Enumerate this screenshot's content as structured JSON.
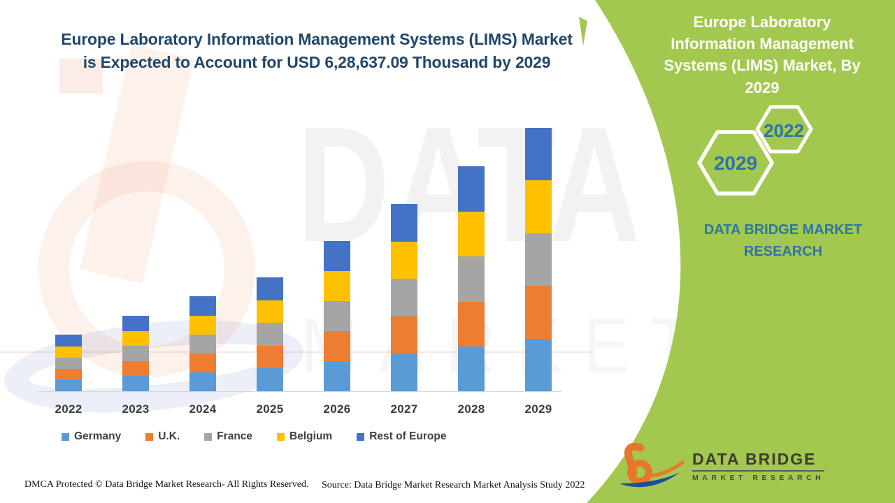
{
  "headline": {
    "line1": "Europe Laboratory Information Management Systems (LIMS) Market",
    "line2": "is Expected to Account for USD 6,28,637.09 Thousand by 2029"
  },
  "panel": {
    "title": "Europe Laboratory Information Management Systems (LIMS) Market, By 2029",
    "brand": "DATA BRIDGE MARKET RESEARCH",
    "background_color": "#A3C84F",
    "text_color": "#2E75A6",
    "hexagons": [
      {
        "label": "2022"
      },
      {
        "label": "2029"
      }
    ]
  },
  "chart_data": {
    "type": "bar",
    "stacked": true,
    "title": "Europe Laboratory Information Management Systems (LIMS) Market is Expected to Account for USD 6,28,637.09 Thousand by 2029",
    "xlabel": "",
    "ylabel": "",
    "y_axis_shown": false,
    "grid": false,
    "legend_position": "bottom",
    "value_unit": "relative height units (no value axis shown); stated 2029 total is USD 6,28,637.09 Thousand",
    "categories": [
      "2022",
      "2023",
      "2024",
      "2025",
      "2026",
      "2027",
      "2028",
      "2029"
    ],
    "series": [
      {
        "name": "Germany",
        "color": "#5B9BD5",
        "values": [
          16,
          22,
          27,
          33,
          43,
          54,
          64,
          75
        ]
      },
      {
        "name": "U.K.",
        "color": "#ED7D31",
        "values": [
          16,
          21,
          27,
          32,
          43,
          53,
          64,
          76
        ]
      },
      {
        "name": "France",
        "color": "#A5A5A5",
        "values": [
          16,
          22,
          27,
          33,
          43,
          54,
          65,
          75
        ]
      },
      {
        "name": "Belgium",
        "color": "#FFC000",
        "values": [
          16,
          21,
          27,
          32,
          43,
          53,
          64,
          76
        ]
      },
      {
        "name": "Rest of Europe",
        "color": "#4472C4",
        "values": [
          17,
          22,
          28,
          33,
          43,
          54,
          65,
          75
        ]
      }
    ],
    "stack_totals": [
      81,
      108,
      136,
      163,
      215,
      268,
      322,
      377
    ],
    "ylim": [
      0,
      380
    ]
  },
  "watermark": {
    "line1": "DATA BRIDGE",
    "line2": "MARKET RESEARCH"
  },
  "footer": {
    "dmca": "DMCA Protected © Data Bridge Market Research- All Rights Reserved.",
    "source": "Source: Data Bridge Market Research Market Analysis Study 2022"
  },
  "logo": {
    "name": "DATA BRIDGE",
    "sub": "MARKET RESEARCH"
  }
}
